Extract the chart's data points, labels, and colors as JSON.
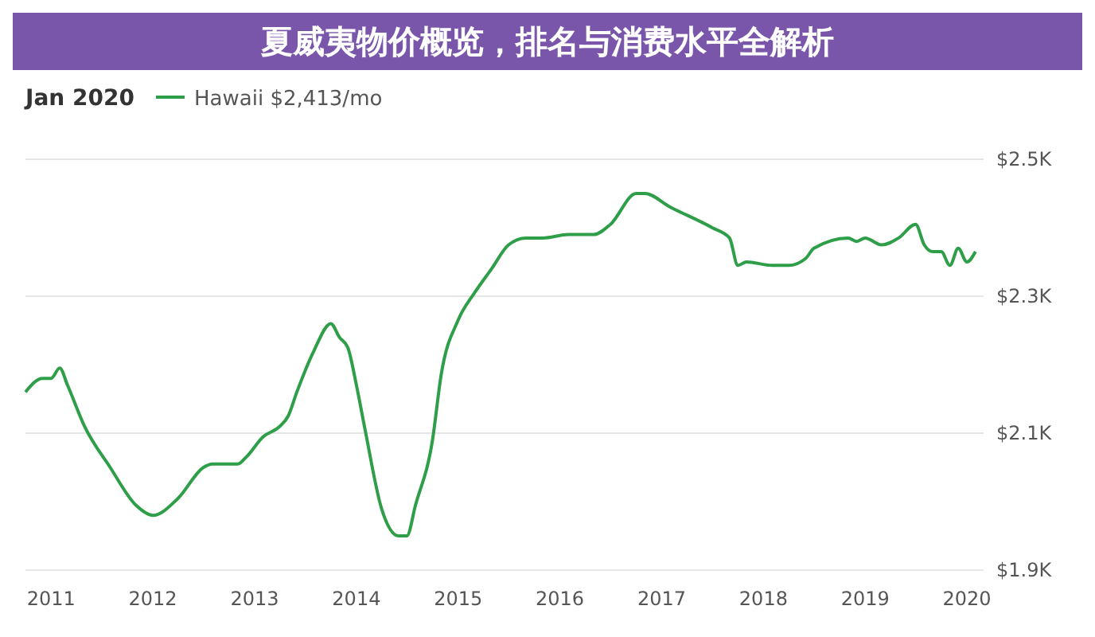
{
  "chart_data": {
    "type": "line",
    "title": "夏威夷物价概览，排名与消费水平全解析",
    "legend_title": "Jan 2020",
    "legend": "top left",
    "grid": "y",
    "marker": "none",
    "xlim": [
      "2010-10",
      "2020-03"
    ],
    "xticks": [
      {
        "value": "2011",
        "label": "2011"
      },
      {
        "value": "2012",
        "label": "2012"
      },
      {
        "value": "2013",
        "label": "2013"
      },
      {
        "value": "2014",
        "label": "2014"
      },
      {
        "value": "2015",
        "label": "2015"
      },
      {
        "value": "2016",
        "label": "2016"
      },
      {
        "value": "2017",
        "label": "2017"
      },
      {
        "value": "2018",
        "label": "2018"
      },
      {
        "value": "2019",
        "label": "2019"
      },
      {
        "value": "2020",
        "label": "2020"
      }
    ],
    "ylim": [
      1900,
      2500
    ],
    "yticks": [
      {
        "value": 1900,
        "label": "$1.9K"
      },
      {
        "value": 2100,
        "label": "$2.1K"
      },
      {
        "value": 2300,
        "label": "$2.3K"
      },
      {
        "value": 2500,
        "label": "$2.5K"
      }
    ],
    "series": [
      {
        "name": "Hawaii $2,413/mo",
        "color": "#2e9e48",
        "x": [
          "2010-10",
          "2010-12",
          "2011-01",
          "2011-02",
          "2011-03",
          "2011-05",
          "2011-08",
          "2011-11",
          "2012-01",
          "2012-04",
          "2012-07",
          "2012-08",
          "2012-10",
          "2012-11",
          "2012-12",
          "2013-02",
          "2013-04",
          "2013-05",
          "2013-06",
          "2013-08",
          "2013-10",
          "2013-11",
          "2013-12",
          "2014-01",
          "2014-02",
          "2014-04",
          "2014-06",
          "2014-07",
          "2014-08",
          "2014-10",
          "2014-11",
          "2015-01",
          "2015-03",
          "2015-05",
          "2015-07",
          "2015-09",
          "2015-11",
          "2016-02",
          "2016-05",
          "2016-07",
          "2016-10",
          "2016-11",
          "2017-02",
          "2017-07",
          "2017-09",
          "2017-10",
          "2017-11",
          "2018-02",
          "2018-04",
          "2018-06",
          "2018-07",
          "2018-11",
          "2018-12",
          "2019-01",
          "2019-03",
          "2019-05",
          "2019-07",
          "2019-08",
          "2019-09",
          "2019-10",
          "2019-11",
          "2019-12",
          "2020-01",
          "2020-02"
        ],
        "values": [
          2160,
          2180,
          2180,
          2195,
          2170,
          2110,
          2050,
          1995,
          1980,
          2005,
          2050,
          2055,
          2055,
          2055,
          2065,
          2095,
          2110,
          2125,
          2160,
          2220,
          2260,
          2240,
          2225,
          2170,
          2105,
          1990,
          1950,
          1950,
          1995,
          2090,
          2185,
          2265,
          2305,
          2340,
          2375,
          2385,
          2385,
          2390,
          2390,
          2405,
          2450,
          2450,
          2430,
          2400,
          2385,
          2345,
          2350,
          2345,
          2345,
          2355,
          2370,
          2385,
          2380,
          2385,
          2375,
          2385,
          2405,
          2375,
          2365,
          2365,
          2345,
          2370,
          2350,
          2365
        ]
      }
    ]
  }
}
